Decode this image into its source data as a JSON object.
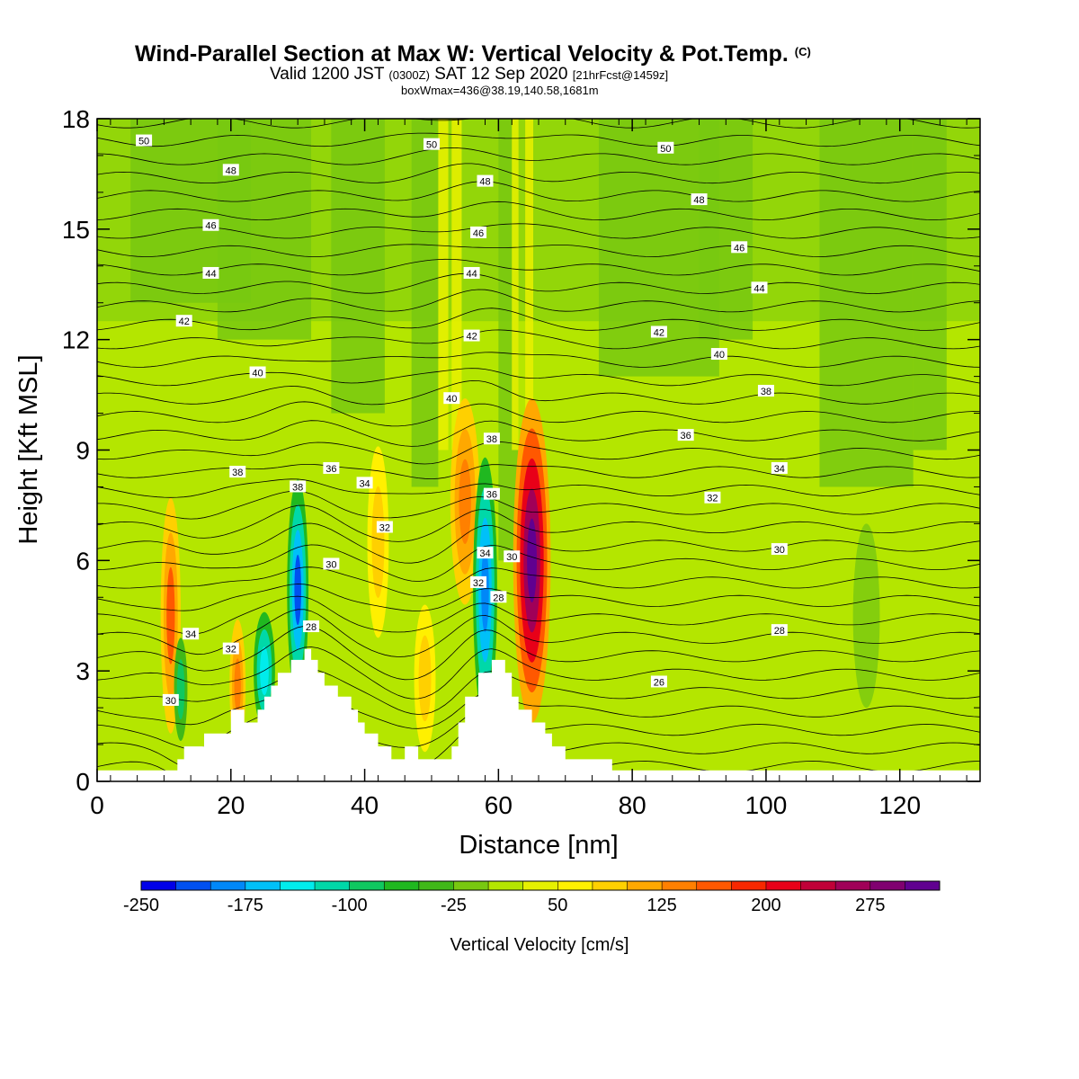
{
  "title": {
    "main": "Wind-Parallel Section at Max W: Vertical Velocity & Pot.Temp.",
    "main_mark": "(C)",
    "sub_prefix": "Valid 1200 JST",
    "sub_zulu": "(0300Z)",
    "sub_date": "SAT 12 Sep 2020",
    "sub_fcst": "[21hrFcst@1459z]",
    "sub2": "boxWmax=436@38.19,140.58,1681m"
  },
  "chart_data": {
    "type": "heatmap",
    "xlabel": "Distance [nm]",
    "ylabel": "Height [Kft MSL]",
    "xlim": [
      0,
      132
    ],
    "ylim": [
      0,
      18
    ],
    "x_ticks": [
      "0",
      "20",
      "40",
      "60",
      "80",
      "100",
      "120"
    ],
    "y_ticks": [
      "0",
      "3",
      "6",
      "9",
      "12",
      "15",
      "18"
    ],
    "colorbar": {
      "label": "Vertical Velocity [cm/s]",
      "tick_labels": [
        "-250",
        "-175",
        "-100",
        "-25",
        "50",
        "125",
        "200",
        "275"
      ],
      "colors": [
        "#0000e8",
        "#0050f0",
        "#0088f8",
        "#00c0f8",
        "#00ecec",
        "#00d8a8",
        "#10c860",
        "#20b820",
        "#40b818",
        "#78c810",
        "#b4e600",
        "#e6f000",
        "#fff000",
        "#ffd000",
        "#ffa800",
        "#ff8000",
        "#ff5800",
        "#f82800",
        "#e80018",
        "#c00038",
        "#a00058",
        "#800070",
        "#600090"
      ]
    },
    "updraft_cores_kft": [
      {
        "x": 11,
        "w_cm_s": 200
      },
      {
        "x": 21,
        "w_cm_s": 150
      },
      {
        "x": 30,
        "w_cm_s": -250
      },
      {
        "x": 42,
        "w_cm_s": 100
      },
      {
        "x": 55,
        "w_cm_s": 150
      },
      {
        "x": 58,
        "w_cm_s": -175
      },
      {
        "x": 65,
        "w_cm_s": 275
      }
    ],
    "terrain_peaks_kft": [
      {
        "x": 31,
        "height": 3.6
      },
      {
        "x": 59,
        "height": 3.2
      }
    ],
    "theta_contour_labels": [
      "50",
      "48",
      "46",
      "44",
      "42",
      "40",
      "38",
      "36",
      "34",
      "32",
      "30",
      "28",
      "26"
    ]
  }
}
